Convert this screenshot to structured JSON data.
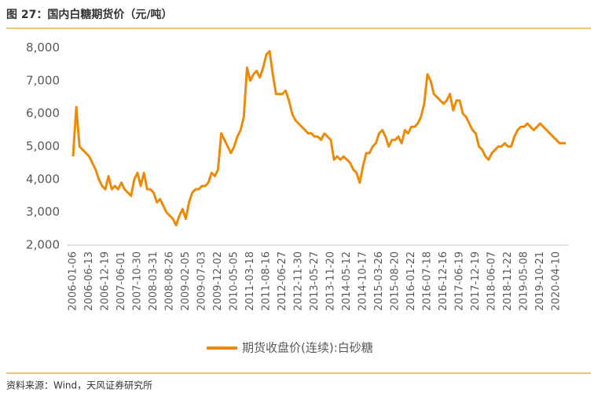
{
  "chart_data": {
    "type": "line",
    "title": "图 27：国内白糖期货价（元/吨）",
    "source": "资料来源：Wind，天风证券研究所",
    "categories": [
      "2006-01-06",
      null,
      null,
      null,
      null,
      "2006-06-13",
      null,
      null,
      null,
      null,
      "2006-12-19",
      null,
      null,
      null,
      null,
      "2007-06-01",
      null,
      null,
      null,
      null,
      "2007-10-30",
      null,
      null,
      null,
      null,
      "2008-03-31",
      null,
      null,
      null,
      null,
      "2008-08-26",
      null,
      null,
      null,
      null,
      "2009-02-05",
      null,
      null,
      null,
      null,
      "2009-07-03",
      null,
      null,
      null,
      null,
      "2009-12-02",
      null,
      null,
      null,
      null,
      "2010-05-05",
      null,
      null,
      null,
      null,
      "2011-03-18",
      null,
      null,
      null,
      null,
      "2011-08-16",
      null,
      null,
      null,
      null,
      "2012-06-27",
      null,
      null,
      null,
      null,
      "2012-11-30",
      null,
      null,
      null,
      null,
      "2013-05-27",
      null,
      null,
      null,
      null,
      "2013-11-20",
      null,
      null,
      null,
      null,
      "2014-05-12",
      null,
      null,
      null,
      null,
      "2014-10-17",
      null,
      null,
      null,
      null,
      "2015-03-26",
      null,
      null,
      null,
      null,
      "2015-08-20",
      null,
      null,
      null,
      null,
      "2016-01-22",
      null,
      null,
      null,
      null,
      "2016-07-18",
      null,
      null,
      null,
      null,
      "2016-12-16",
      null,
      null,
      null,
      null,
      "2017-06-19",
      null,
      null,
      null,
      null,
      "2017-12-19",
      null,
      null,
      null,
      null,
      "2018-06-07",
      null,
      null,
      null,
      null,
      "2018-11-22",
      null,
      null,
      null,
      null,
      "2019-05-08",
      null,
      null,
      null,
      null,
      "2019-10-21",
      null,
      null,
      null,
      null,
      "2020-04-10",
      null,
      null,
      null
    ],
    "series": [
      {
        "name": "期货收盘价(连续):白砂糖",
        "color": "#ee8a0a",
        "values": [
          4700,
          6200,
          5000,
          4900,
          4800,
          4700,
          4500,
          4300,
          4000,
          3800,
          3700,
          4100,
          3700,
          3800,
          3700,
          3900,
          3700,
          3600,
          3500,
          4000,
          4200,
          3800,
          4200,
          3700,
          3700,
          3600,
          3300,
          3400,
          3200,
          3000,
          2900,
          2800,
          2600,
          2900,
          3100,
          2800,
          3300,
          3600,
          3700,
          3700,
          3800,
          3800,
          3900,
          4200,
          4100,
          4300,
          5400,
          5200,
          5000,
          4800,
          5000,
          5300,
          5500,
          5900,
          7400,
          7000,
          7200,
          7300,
          7100,
          7400,
          7800,
          7900,
          7200,
          6600,
          6600,
          6600,
          6700,
          6400,
          6000,
          5800,
          5700,
          5600,
          5500,
          5400,
          5400,
          5300,
          5300,
          5200,
          5400,
          5300,
          5200,
          4600,
          4700,
          4600,
          4700,
          4600,
          4500,
          4300,
          4200,
          3900,
          4400,
          4800,
          4800,
          5000,
          5100,
          5400,
          5500,
          5300,
          5000,
          5200,
          5200,
          5300,
          5100,
          5500,
          5400,
          5600,
          5600,
          5700,
          5900,
          6300,
          7200,
          7000,
          6600,
          6500,
          6400,
          6300,
          6400,
          6600,
          6100,
          6400,
          6400,
          6000,
          5900,
          5700,
          5500,
          5400,
          5000,
          4900,
          4700,
          4600,
          4800,
          4900,
          5000,
          5000,
          5100,
          5000,
          5000,
          5300,
          5500,
          5600,
          5600,
          5700,
          5600,
          5500,
          5600,
          5700,
          5600,
          5500,
          5400,
          5300,
          5200,
          5100,
          5100,
          5100
        ]
      }
    ],
    "ylim": [
      2000,
      8000
    ],
    "yticks": [
      {
        "value": 2000,
        "label": "2,000"
      },
      {
        "value": 3000,
        "label": "3,000"
      },
      {
        "value": 4000,
        "label": "4,000"
      },
      {
        "value": 5000,
        "label": "5,000"
      },
      {
        "value": 6000,
        "label": "6,000"
      },
      {
        "value": 7000,
        "label": "7,000"
      },
      {
        "value": 8000,
        "label": "8,000"
      }
    ],
    "grid": false,
    "legend": "bottom"
  }
}
